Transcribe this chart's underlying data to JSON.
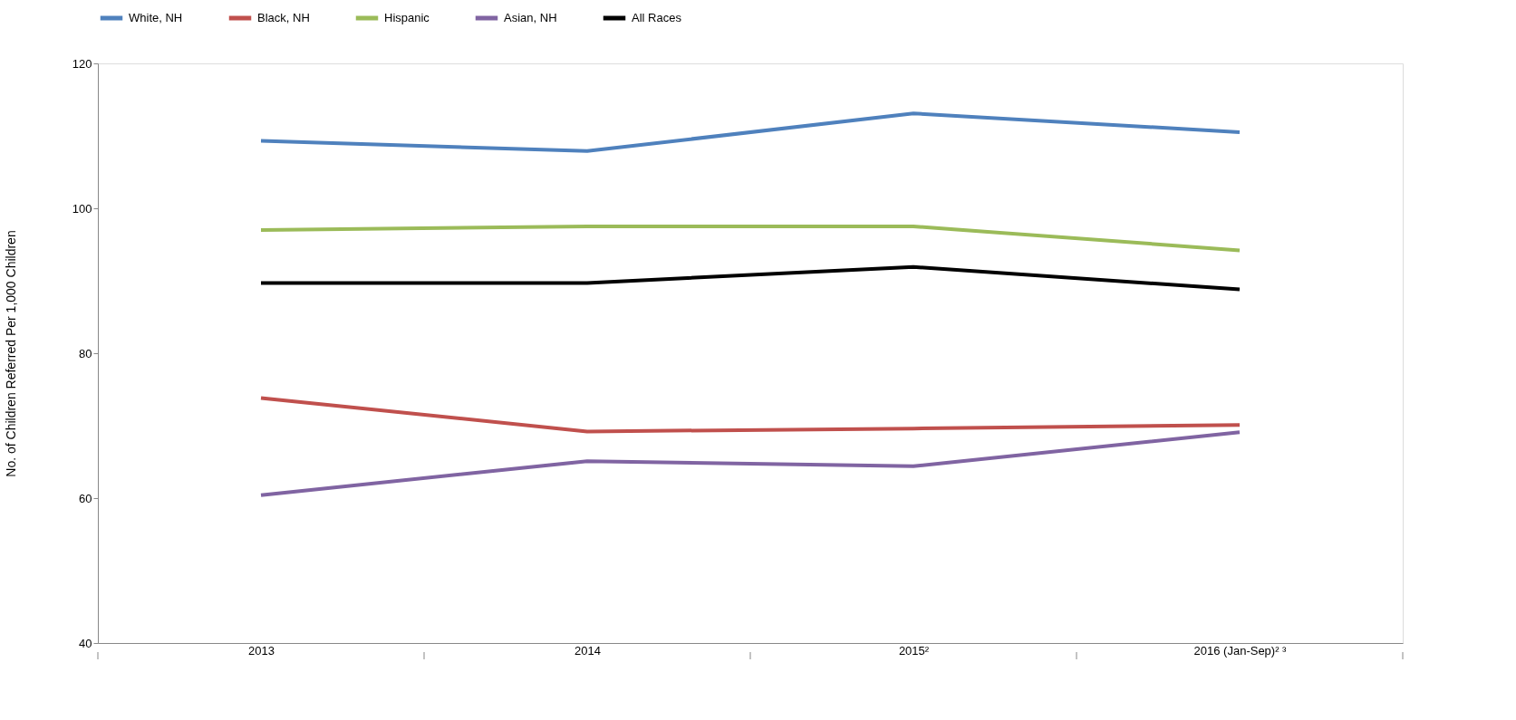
{
  "chart_data": {
    "type": "line",
    "ylabel": "No. of Children Referred Per 1,000 Children",
    "categories": [
      "2013",
      "2014",
      "2015²",
      "2016 (Jan-Sep)² ³"
    ],
    "series": [
      {
        "name": "White, NH",
        "color": "#4f81bd",
        "values": [
          109.3,
          107.9,
          113.1,
          110.5
        ]
      },
      {
        "name": "Black, NH",
        "color": "#c0504d",
        "values": [
          73.8,
          69.2,
          69.6,
          70.1
        ]
      },
      {
        "name": "Hispanic",
        "color": "#9bbb59",
        "values": [
          97.0,
          97.5,
          97.5,
          94.2
        ]
      },
      {
        "name": "Asian, NH",
        "color": "#8064a2",
        "values": [
          60.4,
          65.1,
          64.4,
          69.1
        ]
      },
      {
        "name": "All Races",
        "color": "#000000",
        "values": [
          89.7,
          89.7,
          91.9,
          88.8
        ]
      }
    ],
    "ylim": [
      40,
      120
    ],
    "yticks": [
      40,
      60,
      80,
      100,
      120
    ],
    "grid": false,
    "legend": "top",
    "marker": "none",
    "line_style": "solid"
  }
}
